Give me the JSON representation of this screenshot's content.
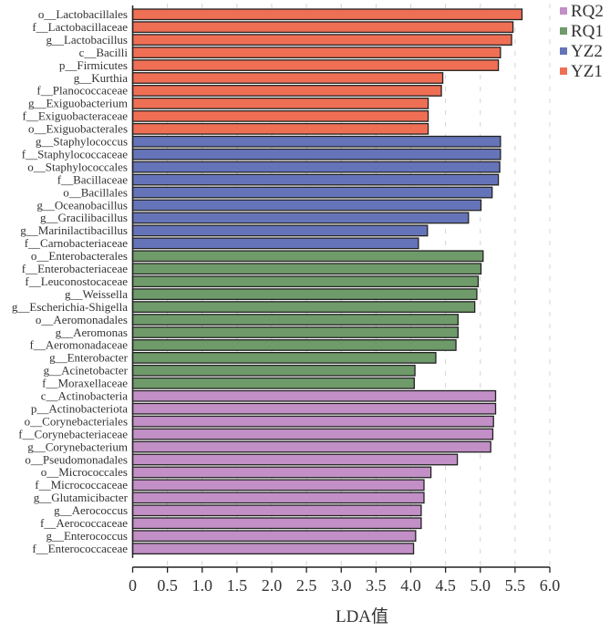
{
  "chart_data": {
    "type": "bar",
    "orientation": "horizontal",
    "title": "",
    "xlabel": "LDA值",
    "ylabel": "",
    "xlim": [
      0,
      6.0
    ],
    "x_ticks": [
      "0",
      "0.5",
      "1.0",
      "1.5",
      "2.0",
      "2.5",
      "3.0",
      "3.5",
      "4.0",
      "4.5",
      "5.0",
      "5.5",
      "6.0"
    ],
    "grid": "vertical dashed",
    "legend_position": "top-right",
    "legend": [
      {
        "name": "RQ2",
        "color": "#c28fc6"
      },
      {
        "name": "RQ1",
        "color": "#6f9a6a"
      },
      {
        "name": "YZ2",
        "color": "#6574b9"
      },
      {
        "name": "YZ1",
        "color": "#ef6f55"
      }
    ],
    "series": [
      {
        "name": "YZ1",
        "color": "#ef6f55",
        "categories": [
          "o__Lactobacillales",
          "f__Lactobacillaceae",
          "g__Lactobacillus",
          "c__Bacilli",
          "p__Firmicutes",
          "g__Kurthia",
          "f__Planococcaceae",
          "g__Exiguobacterium",
          "f__Exiguobacteraceae",
          "o__Exiguobacterales"
        ],
        "values": [
          5.6,
          5.47,
          5.45,
          5.29,
          5.26,
          4.46,
          4.44,
          4.25,
          4.25,
          4.25
        ]
      },
      {
        "name": "YZ2",
        "color": "#6574b9",
        "categories": [
          "g__Staphylococcus",
          "f__Staphylococcaceae",
          "o__Staphylococcales",
          "f__Bacillaceae",
          "o__Bacillales",
          "g__Oceanobacillus",
          "g__Gracilibacillus",
          "g__Marinilactibacillus",
          "f__Carnobacteriaceae"
        ],
        "values": [
          5.29,
          5.29,
          5.28,
          5.26,
          5.17,
          5.01,
          4.83,
          4.24,
          4.11
        ]
      },
      {
        "name": "RQ1",
        "color": "#6f9a6a",
        "categories": [
          "o__Enterobacterales",
          "f__Enterobacteriaceae",
          "f__Leuconostocaceae",
          "g__Weissella",
          "g__Escherichia-Shigella",
          "o__Aeromonadales",
          "g__Aeromonas",
          "f__Aeromonadaceae",
          "g__Enterobacter",
          "g__Acinetobacter",
          "f__Moraxellaceae"
        ],
        "values": [
          5.04,
          5.01,
          4.97,
          4.95,
          4.92,
          4.68,
          4.68,
          4.65,
          4.36,
          4.06,
          4.05
        ]
      },
      {
        "name": "RQ2",
        "color": "#c28fc6",
        "categories": [
          "c__Actinobacteria",
          "p__Actinobacteriota",
          "o__Corynebacteriales",
          "f__Corynebacteriaceae",
          "g__Corynebacterium",
          "o__Pseudomonadales",
          "o__Micrococcales",
          "f__Micrococcaceae",
          "g__Glutamicibacter",
          "g__Aerococcus",
          "f__Aerococcaceae",
          "g__Enterococcus",
          "f__Enterococcaceae"
        ],
        "values": [
          5.22,
          5.22,
          5.19,
          5.18,
          5.15,
          4.67,
          4.29,
          4.19,
          4.19,
          4.15,
          4.15,
          4.07,
          4.04
        ]
      }
    ]
  }
}
